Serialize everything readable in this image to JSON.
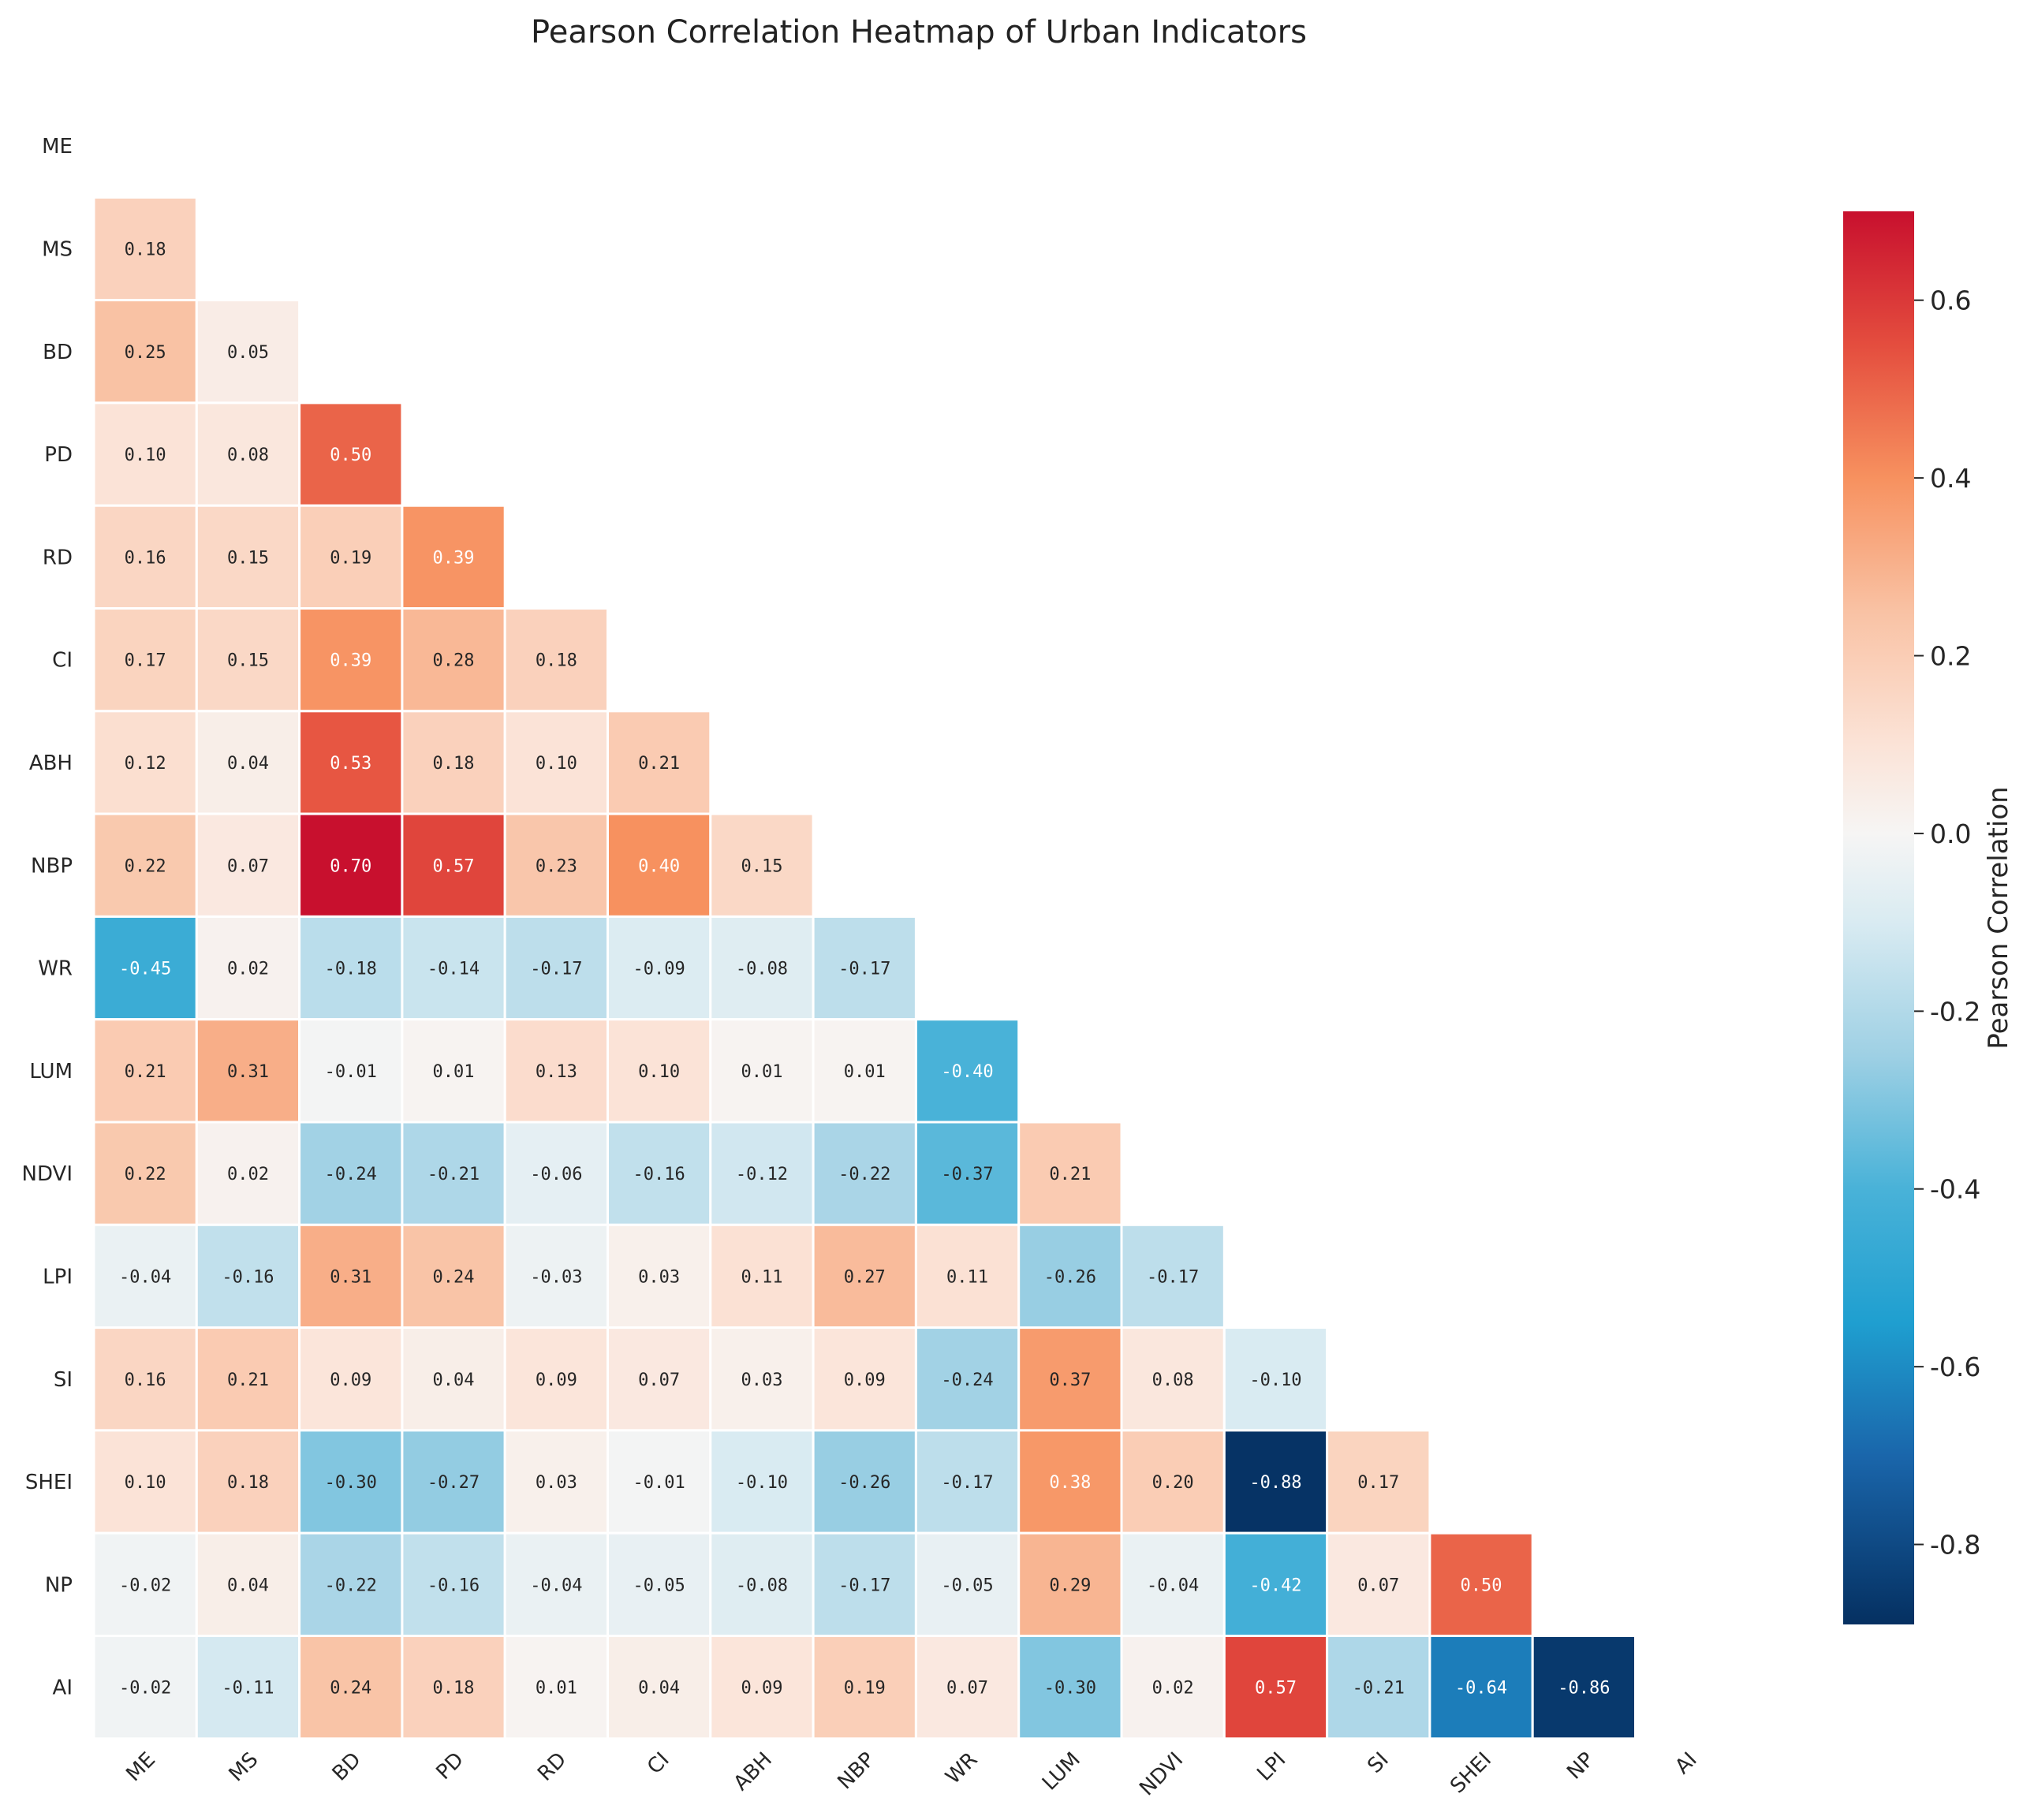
{
  "chart_data": {
    "type": "heatmap",
    "title": "Pearson Correlation Heatmap of Urban Indicators",
    "colorbar_label": "Pearson Correlation",
    "colorbar_range": [
      -0.89,
      0.7
    ],
    "colorbar_ticks": [
      0.6,
      0.4,
      0.2,
      0.0,
      -0.2,
      -0.4,
      -0.6,
      -0.8
    ],
    "colorbar_tick_labels": [
      "0.6",
      "0.4",
      "0.2",
      "0.0",
      "-0.2",
      "-0.4",
      "-0.6",
      "-0.8"
    ],
    "variables": [
      "ME",
      "MS",
      "BD",
      "PD",
      "RD",
      "CI",
      "ABH",
      "NBP",
      "WR",
      "LUM",
      "NDVI",
      "LPI",
      "SI",
      "SHEI",
      "NP",
      "AI"
    ],
    "mask": "upper triangle incl. diagonal",
    "values": [
      [],
      [
        0.18
      ],
      [
        0.25,
        0.05
      ],
      [
        0.1,
        0.08,
        0.5
      ],
      [
        0.16,
        0.15,
        0.19,
        0.39
      ],
      [
        0.17,
        0.15,
        0.39,
        0.28,
        0.18
      ],
      [
        0.12,
        0.04,
        0.53,
        0.18,
        0.1,
        0.21
      ],
      [
        0.22,
        0.07,
        0.7,
        0.57,
        0.23,
        0.4,
        0.15
      ],
      [
        -0.45,
        0.02,
        -0.18,
        -0.14,
        -0.17,
        -0.09,
        -0.08,
        -0.17
      ],
      [
        0.21,
        0.31,
        -0.01,
        0.01,
        0.13,
        0.1,
        0.01,
        0.01,
        -0.4
      ],
      [
        0.22,
        0.02,
        -0.24,
        -0.21,
        -0.06,
        -0.16,
        -0.12,
        -0.22,
        -0.37,
        0.21
      ],
      [
        -0.04,
        -0.16,
        0.31,
        0.24,
        -0.03,
        0.03,
        0.11,
        0.27,
        0.11,
        -0.26,
        -0.17
      ],
      [
        0.16,
        0.21,
        0.09,
        0.04,
        0.09,
        0.07,
        0.03,
        0.09,
        -0.24,
        0.37,
        0.08,
        -0.1
      ],
      [
        0.1,
        0.18,
        -0.3,
        -0.27,
        0.03,
        -0.01,
        -0.1,
        -0.26,
        -0.17,
        0.38,
        0.2,
        -0.88,
        0.17
      ],
      [
        -0.02,
        0.04,
        -0.22,
        -0.16,
        -0.04,
        -0.05,
        -0.08,
        -0.17,
        -0.05,
        0.29,
        -0.04,
        -0.42,
        0.07,
        0.5
      ],
      [
        -0.02,
        -0.11,
        0.24,
        0.18,
        0.01,
        0.04,
        0.09,
        0.19,
        0.07,
        -0.3,
        0.02,
        0.57,
        -0.21,
        -0.64,
        -0.86
      ]
    ],
    "value_labels": [
      [],
      [
        "0.18"
      ],
      [
        "0.25",
        "0.05"
      ],
      [
        "0.10",
        "0.08",
        "0.50"
      ],
      [
        "0.16",
        "0.15",
        "0.19",
        "0.39"
      ],
      [
        "0.17",
        "0.15",
        "0.39",
        "0.28",
        "0.18"
      ],
      [
        "0.12",
        "0.04",
        "0.53",
        "0.18",
        "0.10",
        "0.21"
      ],
      [
        "0.22",
        "0.07",
        "0.70",
        "0.57",
        "0.23",
        "0.40",
        "0.15"
      ],
      [
        "-0.45",
        "0.02",
        "-0.18",
        "-0.14",
        "-0.17",
        "-0.09",
        "-0.08",
        "-0.17"
      ],
      [
        "0.21",
        "0.31",
        "-0.01",
        "0.01",
        "0.13",
        "0.10",
        "0.01",
        "0.01",
        "-0.40"
      ],
      [
        "0.22",
        "0.02",
        "-0.24",
        "-0.21",
        "-0.06",
        "-0.16",
        "-0.12",
        "-0.22",
        "-0.37",
        "0.21"
      ],
      [
        "-0.04",
        "-0.16",
        "0.31",
        "0.24",
        "-0.03",
        "0.03",
        "0.11",
        "0.27",
        "0.11",
        "-0.26",
        "-0.17"
      ],
      [
        "0.16",
        "0.21",
        "0.09",
        "0.04",
        "0.09",
        "0.07",
        "0.03",
        "0.09",
        "-0.24",
        "0.37",
        "0.08",
        "-0.10"
      ],
      [
        "0.10",
        "0.18",
        "-0.30",
        "-0.27",
        "0.03",
        "-0.01",
        "-0.10",
        "-0.26",
        "-0.17",
        "0.38",
        "0.20",
        "-0.88",
        "0.17"
      ],
      [
        "-0.02",
        "0.04",
        "-0.22",
        "-0.16",
        "-0.04",
        "-0.05",
        "-0.08",
        "-0.17",
        "-0.05",
        "0.29",
        "-0.04",
        "-0.42",
        "0.07",
        "0.50"
      ],
      [
        "-0.02",
        "-0.11",
        "0.24",
        "0.18",
        "0.01",
        "0.04",
        "0.09",
        "0.19",
        "0.07",
        "-0.30",
        "0.02",
        "0.57",
        "-0.21",
        "-0.64",
        "-0.86"
      ]
    ]
  },
  "colors": {
    "background": "#ffffff",
    "cell_border": "#ffffff",
    "text_dark": "#262626",
    "text_light": "#ffffff",
    "colormap_stops": [
      {
        "v": -0.89,
        "c": "#053061"
      },
      {
        "v": -0.7,
        "c": "#1a66ab"
      },
      {
        "v": -0.55,
        "c": "#1f9fd0"
      },
      {
        "v": -0.4,
        "c": "#49b2d8"
      },
      {
        "v": -0.25,
        "c": "#9ed0e4"
      },
      {
        "v": -0.1,
        "c": "#d9ebf2"
      },
      {
        "v": 0.0,
        "c": "#f6f5f4"
      },
      {
        "v": 0.1,
        "c": "#fbe3d7"
      },
      {
        "v": 0.25,
        "c": "#f9c2a4"
      },
      {
        "v": 0.4,
        "c": "#f7915f"
      },
      {
        "v": 0.55,
        "c": "#e44d3e"
      },
      {
        "v": 0.7,
        "c": "#c8102e"
      }
    ]
  }
}
